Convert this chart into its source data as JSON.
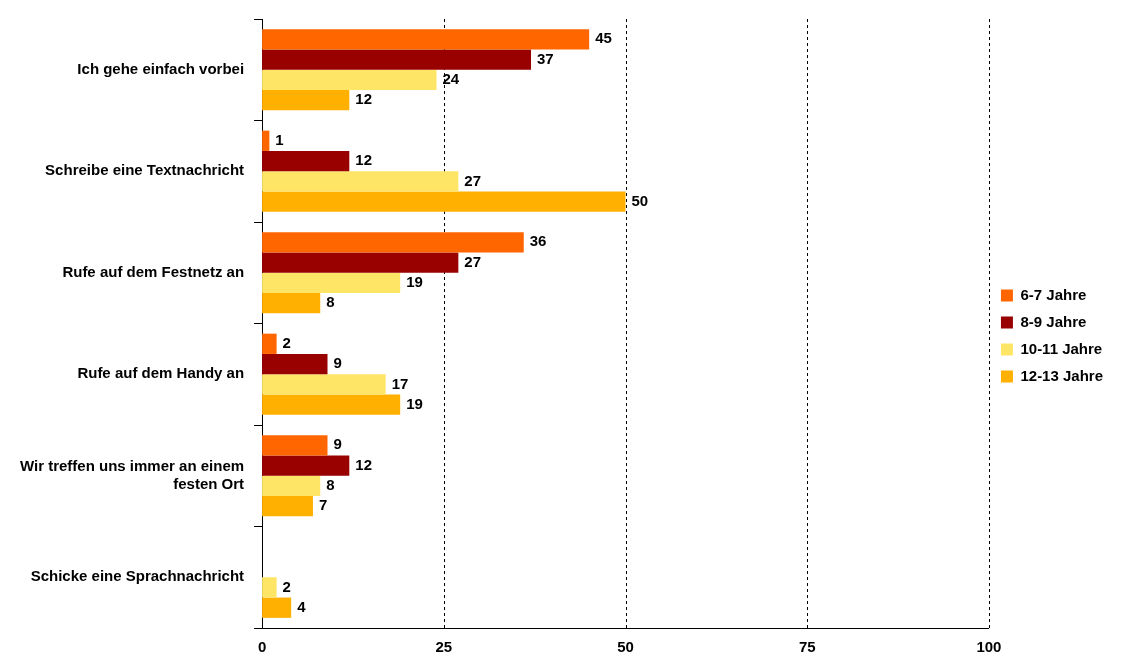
{
  "chart_data": {
    "type": "bar",
    "orientation": "horizontal",
    "categories": [
      "Ich gehe einfach vorbei",
      "Schreibe eine Textnachricht",
      "Rufe auf dem Festnetz an",
      "Rufe auf dem Handy an",
      "Wir treffen uns immer an einem festen Ort",
      "Schicke eine Sprachnachricht"
    ],
    "series": [
      {
        "name": "6-7 Jahre",
        "color": "#ff6600",
        "values": [
          45,
          1,
          36,
          2,
          9,
          null
        ]
      },
      {
        "name": "8-9 Jahre",
        "color": "#990000",
        "values": [
          37,
          12,
          27,
          9,
          12,
          null
        ]
      },
      {
        "name": "10-11 Jahre",
        "color": "#ffe566",
        "values": [
          24,
          27,
          19,
          17,
          8,
          2
        ]
      },
      {
        "name": "12-13 Jahre",
        "color": "#ffb000",
        "values": [
          12,
          50,
          8,
          19,
          7,
          4
        ]
      }
    ],
    "xlim": [
      0,
      100
    ],
    "xticks": [
      0,
      25,
      50,
      75,
      100
    ],
    "grid": "x",
    "legend": "right",
    "data_labels": true
  }
}
